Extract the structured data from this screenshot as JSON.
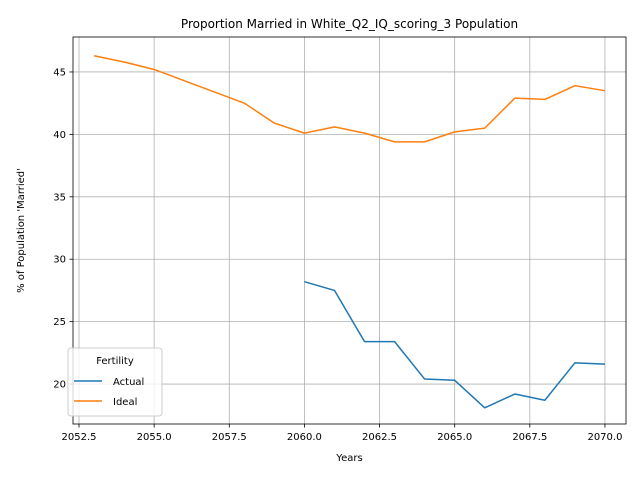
{
  "chart_data": {
    "type": "line",
    "title": "Proportion Married in White_Q2_IQ_scoring_3 Population",
    "xlabel": "Years",
    "ylabel": "% of Population 'Married'",
    "xlim": [
      2052.3,
      2070.7
    ],
    "ylim": [
      16.8,
      47.8
    ],
    "xticks": [
      2052.5,
      2055.0,
      2057.5,
      2060.0,
      2062.5,
      2065.0,
      2067.5,
      2070.0
    ],
    "xtick_labels": [
      "2052.5",
      "2055.0",
      "2057.5",
      "2060.0",
      "2062.5",
      "2065.0",
      "2067.5",
      "2070.0"
    ],
    "yticks": [
      20,
      25,
      30,
      35,
      40,
      45
    ],
    "ytick_labels": [
      "20",
      "25",
      "30",
      "35",
      "40",
      "45"
    ],
    "grid": true,
    "legend": {
      "title": "Fertility",
      "placement": "lower-left"
    },
    "series": [
      {
        "name": "Actual",
        "color": "#1f77b4",
        "x": [
          2060,
          2061,
          2062,
          2063,
          2064,
          2065,
          2066,
          2067,
          2068,
          2069,
          2070
        ],
        "y": [
          28.2,
          27.5,
          23.4,
          23.4,
          20.4,
          20.3,
          18.1,
          19.2,
          18.7,
          21.7,
          21.6
        ]
      },
      {
        "name": "Ideal",
        "color": "#ff7f0e",
        "x": [
          2053,
          2054,
          2055,
          2056,
          2057,
          2058,
          2059,
          2060,
          2061,
          2062,
          2063,
          2064,
          2065,
          2066,
          2067,
          2068,
          2069,
          2070
        ],
        "y": [
          46.3,
          45.8,
          45.2,
          44.3,
          43.4,
          42.5,
          40.9,
          40.1,
          40.6,
          40.1,
          39.4,
          39.4,
          40.2,
          40.5,
          42.9,
          42.8,
          43.9,
          43.5
        ]
      }
    ]
  }
}
